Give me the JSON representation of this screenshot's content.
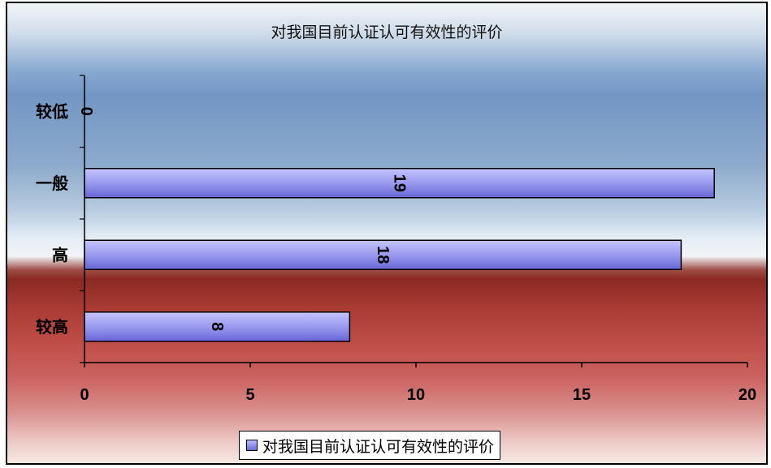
{
  "chart_data": {
    "type": "bar",
    "orientation": "horizontal",
    "title": "对我国目前认证认可有效性的评价",
    "categories": [
      "较低",
      "一般",
      "高",
      "较高"
    ],
    "series": [
      {
        "name": "对我国目前认证认可有效性的评价",
        "values": [
          0,
          19,
          18,
          8
        ]
      }
    ],
    "data_labels": [
      "0",
      "19",
      "18",
      "8"
    ],
    "xlim": [
      0,
      20
    ],
    "xticks": [
      "0",
      "5",
      "10",
      "15",
      "20"
    ],
    "grid": false,
    "legend": "bottom",
    "colors": {
      "bar_light": "#c4c4ff",
      "bar_dark": "#6666d6",
      "bar_border": "#000000"
    }
  }
}
